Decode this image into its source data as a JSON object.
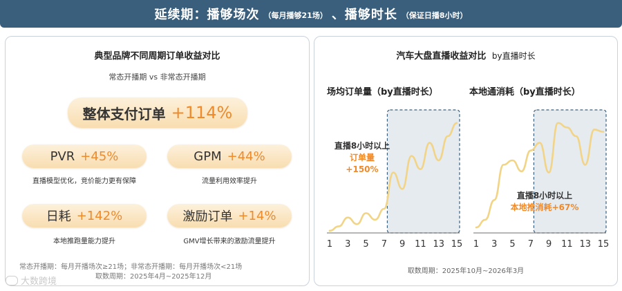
{
  "header": {
    "title": "延续期：播够场次",
    "title_sub": "（每月播够21场）",
    "title2": "、播够时长",
    "title2_sub": "（保证日播8小时）"
  },
  "left": {
    "title": "典型品牌不同周期订单收益对比",
    "subtitle": "常态开播期 vs 非常态开播期",
    "main_metric": {
      "label": "整体支付订单",
      "value": "+114%"
    },
    "metrics": [
      {
        "label": "PVR",
        "value": "+45%",
        "note": "直播模型优化，竞价能力更有保障"
      },
      {
        "label": "GPM",
        "value": "+44%",
        "note": "流量利用效率提升"
      },
      {
        "label": "日耗",
        "value": "+142%",
        "note": "本地推跑量能力提升"
      },
      {
        "label": "激励订单",
        "value": "+14%",
        "note": "GMV增长带来的激励流量提升"
      }
    ],
    "footnote1": "常态开播期：每月开播场次≥21场；非常态开播期：每月开播场次<21场",
    "footnote2": "取数周期：2025年4月~2025年12月"
  },
  "right": {
    "title_main": "汽车大盘直播收益对比",
    "title_sub": "by直播时长",
    "footnote": "取数周期：2025年10月~2026年3月"
  },
  "chart_data": [
    {
      "type": "line",
      "title": "场均订单量（by直播时长）",
      "x": [
        1,
        2,
        3,
        4,
        5,
        6,
        7,
        8,
        9,
        10,
        11,
        12,
        13,
        14,
        15
      ],
      "xticks": [
        "1",
        "3",
        "5",
        "7",
        "9",
        "11",
        "13",
        "15"
      ],
      "series": [
        {
          "values": [
            2,
            6,
            14,
            8,
            18,
            12,
            22,
            55,
            40,
            70,
            58,
            82,
            66,
            88,
            100
          ]
        }
      ],
      "highlight_range": [
        7.5,
        15
      ],
      "annotation": {
        "line1": "直播8小时以上",
        "line2": "订单量",
        "line3": "+150%"
      },
      "ylim": [
        0,
        110
      ],
      "color": "#f2d487"
    },
    {
      "type": "line",
      "title": "本地通消耗（by直播时长）",
      "x": [
        1,
        2,
        3,
        4,
        5,
        6,
        7,
        8,
        9,
        10,
        11,
        12,
        13,
        14,
        15
      ],
      "xticks": [
        "1",
        "3",
        "5",
        "7",
        "9",
        "11",
        "13",
        "15"
      ],
      "series": [
        {
          "values": [
            5,
            12,
            30,
            62,
            66,
            56,
            75,
            82,
            55,
            100,
            96,
            88,
            62,
            94,
            92
          ]
        }
      ],
      "highlight_range": [
        7.5,
        15
      ],
      "annotation": {
        "line1": "直播8小时以上",
        "line2": "本地推消耗+67%"
      },
      "ylim": [
        0,
        110
      ],
      "color": "#f2d487"
    }
  ],
  "watermark": "大数跨境"
}
